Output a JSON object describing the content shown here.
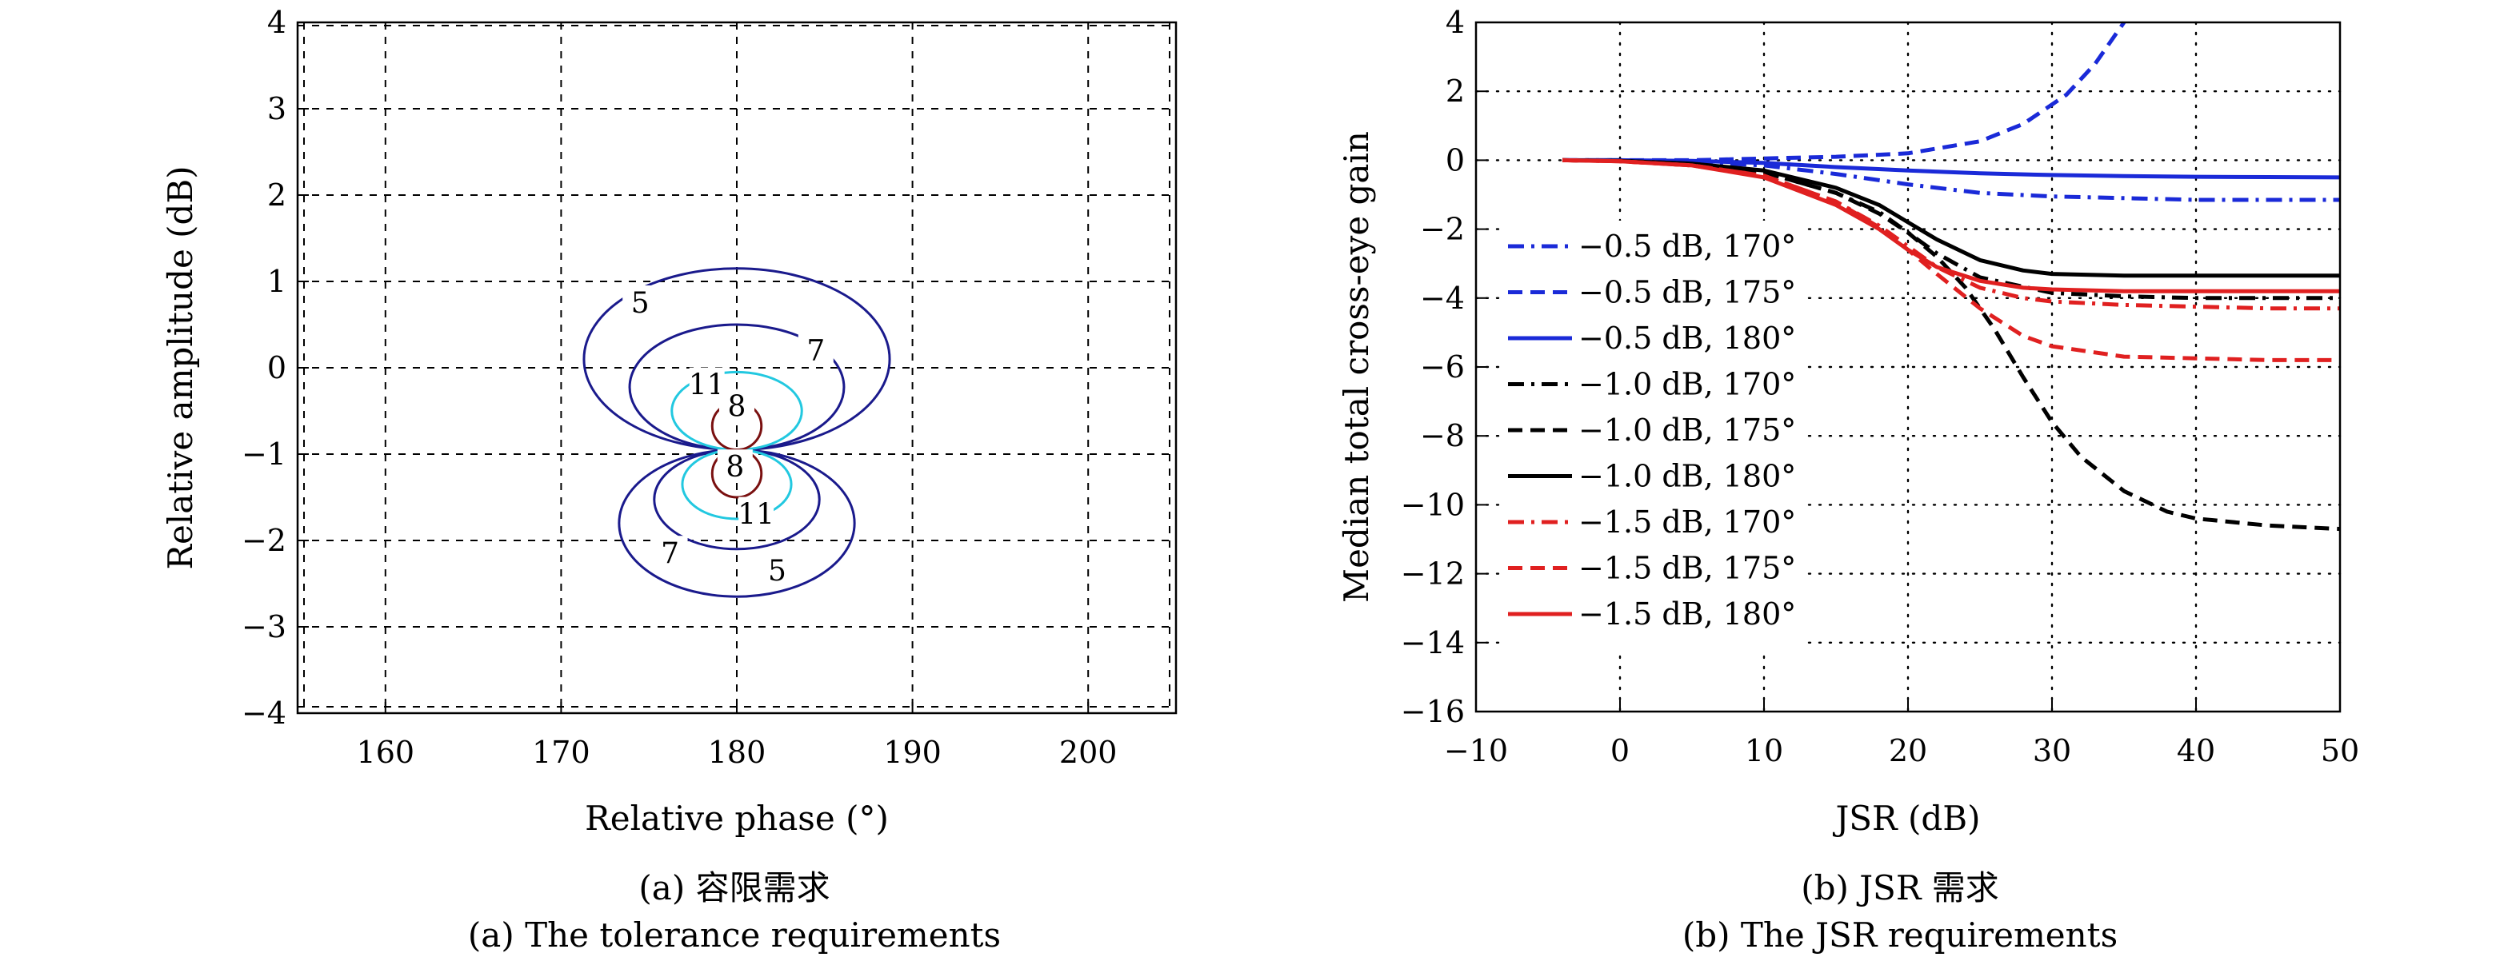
{
  "chart_data": [
    {
      "type": "contour",
      "xlabel": "Relative phase (°)",
      "ylabel": "Relative amplitude (dB)",
      "xlim": [
        155,
        205
      ],
      "ylim": [
        -4,
        4
      ],
      "xticks": [
        160,
        170,
        180,
        190,
        200
      ],
      "yticks": [
        4,
        3,
        2,
        1,
        0,
        -1,
        -2,
        -3,
        -4
      ],
      "grid": true,
      "caption_cn": "(a) 容限需求",
      "caption_en": "(a) The tolerance requirements",
      "contours": [
        {
          "level": "5",
          "color": "#1a1a8c",
          "center_phase": 180,
          "lobes": [
            {
              "amp_center": -0.2,
              "phase_half_width": 8.7,
              "amp_extent": [
                -0.95,
                1.15
              ]
            },
            {
              "amp_center": -1.7,
              "phase_half_width": 6.7,
              "amp_extent": [
                -2.65,
                -0.95
              ]
            }
          ]
        },
        {
          "level": "7",
          "color": "#1a1a8c",
          "center_phase": 180,
          "lobes": [
            {
              "amp_center": -0.35,
              "phase_half_width": 6.1,
              "amp_extent": [
                -0.95,
                0.5
              ]
            },
            {
              "amp_center": -1.55,
              "phase_half_width": 4.7,
              "amp_extent": [
                -2.1,
                -0.95
              ]
            }
          ]
        },
        {
          "level": "11",
          "color": "#22c8e0",
          "center_phase": 180,
          "lobes": [
            {
              "amp_center": -0.55,
              "phase_half_width": 3.7,
              "amp_extent": [
                -0.95,
                -0.05
              ]
            },
            {
              "amp_center": -1.3,
              "phase_half_width": 3.1,
              "amp_extent": [
                -1.75,
                -0.95
              ]
            }
          ]
        },
        {
          "level": "8",
          "color": "#7a1010",
          "center_phase": 180,
          "lobes": [
            {
              "amp_center": -0.65,
              "phase_half_width": 1.4,
              "amp_extent": [
                -0.95,
                -0.4
              ]
            },
            {
              "amp_center": -1.2,
              "phase_half_width": 1.4,
              "amp_extent": [
                -1.5,
                -0.95
              ]
            }
          ]
        }
      ],
      "contour_labels": [
        {
          "text": "5",
          "x": 174.5,
          "y": 0.75
        },
        {
          "text": "7",
          "x": 184.5,
          "y": 0.2
        },
        {
          "text": "11",
          "x": 178.3,
          "y": -0.2
        },
        {
          "text": "8",
          "x": 180.0,
          "y": -0.45
        },
        {
          "text": "8",
          "x": 179.9,
          "y": -1.15
        },
        {
          "text": "11",
          "x": 181.1,
          "y": -1.7
        },
        {
          "text": "7",
          "x": 176.2,
          "y": -2.15
        },
        {
          "text": "5",
          "x": 182.3,
          "y": -2.35
        }
      ]
    },
    {
      "type": "line",
      "xlabel": "JSR (dB)",
      "ylabel": "Median total cross-eye gain",
      "xlim": [
        -10,
        50
      ],
      "ylim": [
        -16,
        4
      ],
      "xticks": [
        -10,
        0,
        10,
        20,
        30,
        40,
        50
      ],
      "yticks": [
        4,
        2,
        0,
        -2,
        -4,
        -6,
        -8,
        -10,
        -12,
        -14,
        -16
      ],
      "grid": true,
      "legend_position": "left-center",
      "caption_cn": "(b) JSR 需求",
      "caption_en": "(b) The JSR requirements",
      "series": [
        {
          "name": "−0.5 dB, 170°",
          "color": "#1a2ad8",
          "dash": "dashdot",
          "x": [
            -4,
            0,
            5,
            10,
            15,
            20,
            25,
            30,
            35,
            40,
            45,
            50
          ],
          "y": [
            0,
            0,
            -0.05,
            -0.15,
            -0.4,
            -0.7,
            -0.95,
            -1.05,
            -1.1,
            -1.15,
            -1.15,
            -1.15
          ]
        },
        {
          "name": "−0.5 dB, 175°",
          "color": "#1a2ad8",
          "dash": "dashed",
          "x": [
            -4,
            0,
            5,
            10,
            15,
            20,
            25,
            28,
            31,
            33,
            35
          ],
          "y": [
            0,
            0,
            0,
            0.05,
            0.1,
            0.2,
            0.55,
            1.05,
            1.9,
            2.8,
            4
          ]
        },
        {
          "name": "−0.5 dB, 180°",
          "color": "#1a2ad8",
          "dash": "solid",
          "x": [
            -4,
            0,
            5,
            10,
            15,
            20,
            25,
            30,
            35,
            40,
            45,
            50
          ],
          "y": [
            0,
            0,
            -0.02,
            -0.08,
            -0.2,
            -0.3,
            -0.38,
            -0.43,
            -0.46,
            -0.48,
            -0.49,
            -0.5
          ]
        },
        {
          "name": "−1.0 dB, 170°",
          "color": "#000000",
          "dash": "dashdot",
          "x": [
            -4,
            0,
            5,
            10,
            15,
            18,
            20,
            22,
            25,
            30,
            35,
            40,
            45,
            50
          ],
          "y": [
            0,
            -0.02,
            -0.1,
            -0.35,
            -0.95,
            -1.5,
            -2.1,
            -2.7,
            -3.4,
            -3.85,
            -3.95,
            -4,
            -4,
            -4
          ]
        },
        {
          "name": "−1.0 dB, 175°",
          "color": "#000000",
          "dash": "dashed",
          "x": [
            -4,
            0,
            5,
            10,
            15,
            18,
            20,
            22,
            24,
            26,
            28,
            30,
            32,
            35,
            38,
            40,
            45,
            50
          ],
          "y": [
            0,
            -0.02,
            -0.1,
            -0.35,
            -0.95,
            -1.55,
            -2.1,
            -2.8,
            -3.7,
            -4.9,
            -6.3,
            -7.6,
            -8.6,
            -9.6,
            -10.2,
            -10.4,
            -10.6,
            -10.7
          ]
        },
        {
          "name": "−1.0 dB, 180°",
          "color": "#000000",
          "dash": "solid",
          "x": [
            -4,
            0,
            5,
            10,
            15,
            18,
            20,
            22,
            25,
            28,
            30,
            35,
            40,
            45,
            50
          ],
          "y": [
            0,
            -0.02,
            -0.1,
            -0.3,
            -0.8,
            -1.3,
            -1.8,
            -2.3,
            -2.9,
            -3.2,
            -3.3,
            -3.35,
            -3.35,
            -3.35,
            -3.35
          ]
        },
        {
          "name": "−1.5 dB, 170°",
          "color": "#e02020",
          "dash": "dashdot",
          "x": [
            -4,
            0,
            5,
            10,
            15,
            18,
            20,
            22,
            25,
            28,
            30,
            35,
            40,
            45,
            50
          ],
          "y": [
            0,
            -0.03,
            -0.15,
            -0.45,
            -1.2,
            -1.9,
            -2.5,
            -3.1,
            -3.7,
            -4.0,
            -4.1,
            -4.2,
            -4.25,
            -4.3,
            -4.3
          ]
        },
        {
          "name": "−1.5 dB, 175°",
          "color": "#e02020",
          "dash": "dashed",
          "x": [
            -4,
            0,
            5,
            10,
            15,
            18,
            20,
            22,
            25,
            28,
            30,
            35,
            40,
            45,
            50
          ],
          "y": [
            0,
            -0.03,
            -0.15,
            -0.45,
            -1.2,
            -1.95,
            -2.6,
            -3.3,
            -4.3,
            -5.1,
            -5.4,
            -5.7,
            -5.75,
            -5.8,
            -5.8
          ]
        },
        {
          "name": "−1.5 dB, 180°",
          "color": "#e02020",
          "dash": "solid",
          "x": [
            -4,
            0,
            5,
            10,
            15,
            18,
            20,
            22,
            25,
            28,
            30,
            35,
            40,
            45,
            50
          ],
          "y": [
            0,
            -0.03,
            -0.15,
            -0.5,
            -1.3,
            -2.0,
            -2.6,
            -3.1,
            -3.5,
            -3.7,
            -3.75,
            -3.8,
            -3.8,
            -3.8,
            -3.8
          ]
        }
      ]
    }
  ]
}
